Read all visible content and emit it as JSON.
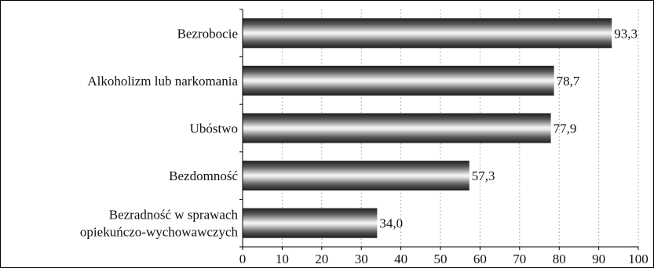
{
  "chart_data": {
    "type": "bar",
    "orientation": "horizontal",
    "categories": [
      [
        "Bezrobocie"
      ],
      [
        "Alkoholizm lub narkomania"
      ],
      [
        "Ubóstwo"
      ],
      [
        "Bezdomność"
      ],
      [
        "Bezradność w sprawach",
        "opiekuńczo-wychowawczych"
      ]
    ],
    "values": [
      93.3,
      78.7,
      77.9,
      57.3,
      34.0
    ],
    "value_labels": [
      "93,3",
      "78,7",
      "77,9",
      "57,3",
      "34,0"
    ],
    "xlim": [
      0,
      100
    ],
    "xticks": [
      0,
      10,
      20,
      30,
      40,
      50,
      60,
      70,
      80,
      90,
      100
    ],
    "grid": "vertical-dotted",
    "bar_style": "metallic-gradient",
    "colors": {
      "bar_dark": "#2a2a2a",
      "bar_light": "#f2f2f2",
      "grid": "#9a9a9a",
      "axis": "#000000"
    }
  }
}
